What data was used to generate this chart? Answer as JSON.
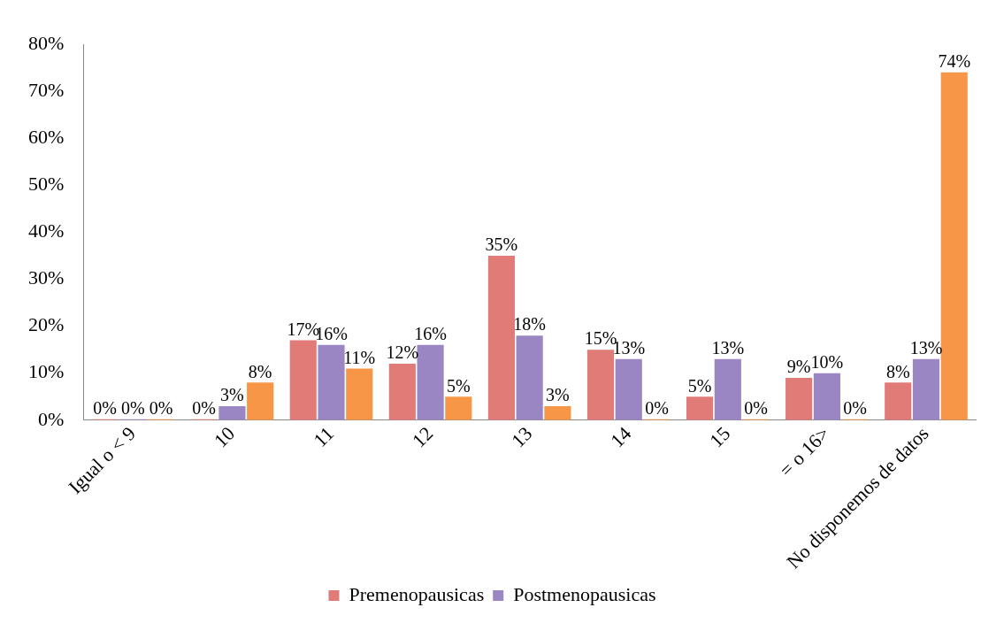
{
  "chart_data": {
    "type": "bar",
    "categories": [
      "Igual o < 9",
      "10",
      "11",
      "12",
      "13",
      "14",
      "15",
      "= o 16>",
      "No disponemos de datos"
    ],
    "series": [
      {
        "name": "Premenopausicas",
        "color": "#e07b78",
        "values": [
          0,
          0,
          17,
          12,
          35,
          15,
          5,
          9,
          8
        ],
        "value_labels": [
          "0%",
          "0%",
          "17%",
          "12%",
          "35%",
          "15%",
          "5%",
          "9%",
          "8%"
        ]
      },
      {
        "name": "Postmenopausicas",
        "color": "#9b86c4",
        "values": [
          0,
          3,
          16,
          16,
          18,
          13,
          13,
          10,
          13
        ],
        "value_labels": [
          "0%",
          "3%",
          "16%",
          "16%",
          "18%",
          "13%",
          "13%",
          "10%",
          "13%"
        ]
      },
      {
        "color": "#f79646",
        "values": [
          0,
          8,
          11,
          5,
          3,
          0,
          0,
          0,
          74
        ],
        "value_labels": [
          "0%",
          "8%",
          "11%",
          "5%",
          "3%",
          "0%",
          "0%",
          "0%",
          "74%"
        ]
      }
    ],
    "ylim": [
      0,
      80
    ],
    "yticks": [
      {
        "value": 0,
        "label": "0%"
      },
      {
        "value": 10,
        "label": "10%"
      },
      {
        "value": 20,
        "label": "20%"
      },
      {
        "value": 30,
        "label": "30%"
      },
      {
        "value": 40,
        "label": "40%"
      },
      {
        "value": 50,
        "label": "50%"
      },
      {
        "value": 60,
        "label": "60%"
      },
      {
        "value": 70,
        "label": "70%"
      },
      {
        "value": 80,
        "label": "80%"
      }
    ],
    "grid": false,
    "legend": "bottom"
  }
}
